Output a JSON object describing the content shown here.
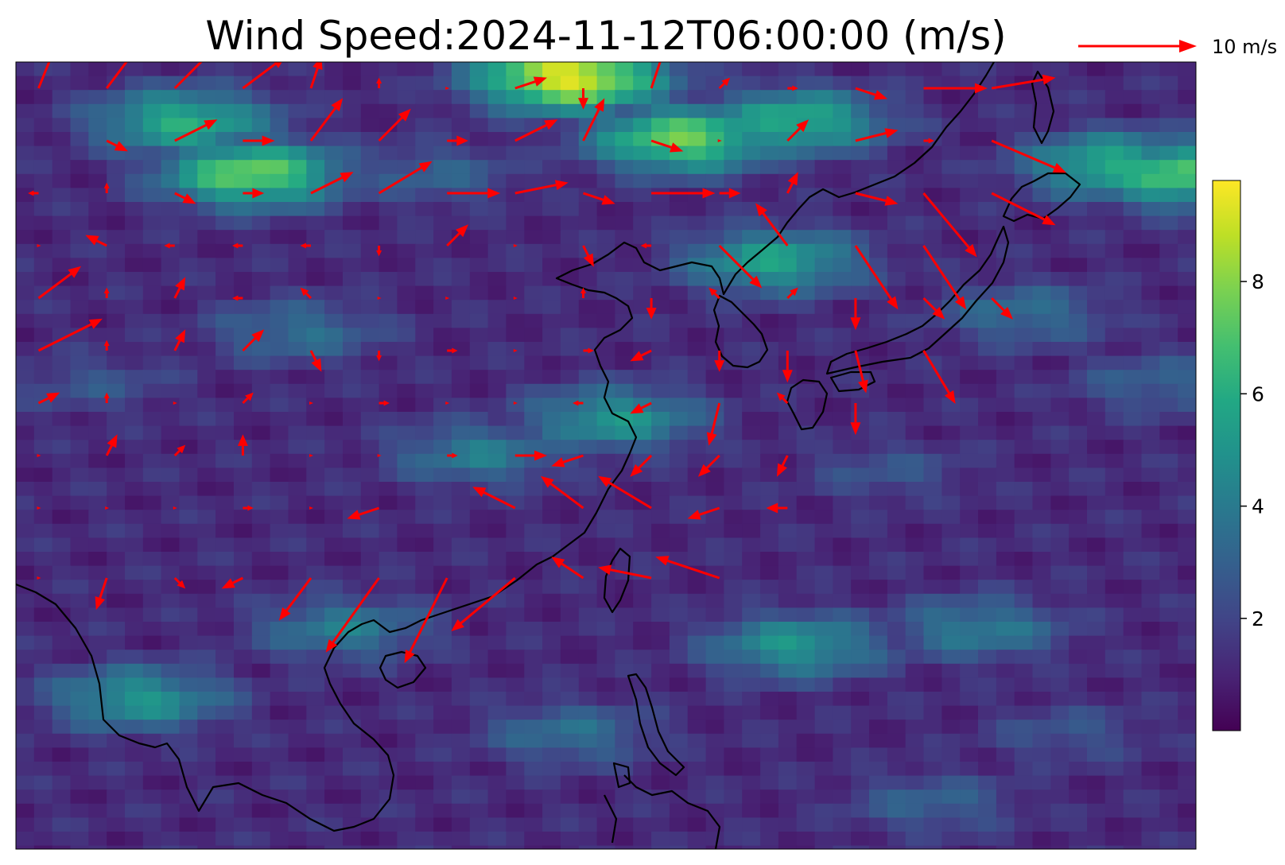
{
  "title": "Wind Speed:2024-11-12T06:00:00 (m/s)",
  "quiver_key": {
    "label": "10 m/s",
    "value": 10
  },
  "colorbar": {
    "colormap": "viridis",
    "range": [
      0,
      9.8
    ],
    "ticks": [
      {
        "value": 2,
        "label": "2"
      },
      {
        "value": 4,
        "label": "4"
      },
      {
        "value": 6,
        "label": "6"
      },
      {
        "value": 8,
        "label": "8"
      }
    ]
  },
  "colors": {
    "arrow": "#ff0000",
    "coastline": "#000000"
  },
  "chart_data": {
    "type": "heatmap",
    "overlay": "quiver",
    "variable": "wind speed",
    "units": "m/s",
    "extent": {
      "lon": [
        100,
        152
      ],
      "lat": [
        3,
        48
      ]
    },
    "speed_hotspots": [
      {
        "lon": 124,
        "lat": 47.5,
        "speed": 9.5
      },
      {
        "lon": 129,
        "lat": 44,
        "speed": 7.5
      },
      {
        "lon": 110,
        "lat": 42,
        "speed": 7.5
      },
      {
        "lon": 107,
        "lat": 45,
        "speed": 6
      },
      {
        "lon": 151,
        "lat": 42,
        "speed": 7
      },
      {
        "lon": 134,
        "lat": 45,
        "speed": 6
      },
      {
        "lon": 148,
        "lat": 42.5,
        "speed": 6
      },
      {
        "lon": 133,
        "lat": 37,
        "speed": 5.5
      },
      {
        "lon": 126,
        "lat": 28,
        "speed": 5
      },
      {
        "lon": 134,
        "lat": 15,
        "speed": 5
      },
      {
        "lon": 142,
        "lat": 16,
        "speed": 4
      },
      {
        "lon": 105,
        "lat": 12,
        "speed": 5
      },
      {
        "lon": 114,
        "lat": 16,
        "speed": 4
      },
      {
        "lon": 120,
        "lat": 26,
        "speed": 4
      },
      {
        "lon": 112,
        "lat": 33,
        "speed": 3.5
      },
      {
        "lon": 144,
        "lat": 34,
        "speed": 3.5
      },
      {
        "lon": 138,
        "lat": 25,
        "speed": 2.5
      },
      {
        "lon": 146,
        "lat": 10,
        "speed": 2.5
      },
      {
        "lon": 140,
        "lat": 6,
        "speed": 3
      },
      {
        "lon": 103,
        "lat": 30,
        "speed": 2.5
      },
      {
        "lon": 118,
        "lat": 42,
        "speed": 3
      },
      {
        "lon": 124,
        "lat": 10,
        "speed": 3.5
      },
      {
        "lon": 150,
        "lat": 30,
        "speed": 3
      }
    ],
    "vectors": [
      {
        "lon": 101,
        "lat": 46.5,
        "u": 2,
        "v": 5
      },
      {
        "lon": 104,
        "lat": 46.5,
        "u": 3,
        "v": 4
      },
      {
        "lon": 107,
        "lat": 46.5,
        "u": 4,
        "v": 4
      },
      {
        "lon": 110,
        "lat": 46.5,
        "u": 4,
        "v": 3
      },
      {
        "lon": 113,
        "lat": 46.5,
        "u": 1,
        "v": 3
      },
      {
        "lon": 116,
        "lat": 46.5,
        "u": 0,
        "v": 1
      },
      {
        "lon": 119,
        "lat": 46.5,
        "u": 0,
        "v": 0
      },
      {
        "lon": 122,
        "lat": 46.5,
        "u": 3,
        "v": 1
      },
      {
        "lon": 125,
        "lat": 46.5,
        "u": 0,
        "v": -2
      },
      {
        "lon": 128,
        "lat": 46.5,
        "u": 2,
        "v": 6
      },
      {
        "lon": 131,
        "lat": 46.5,
        "u": 1,
        "v": 1
      },
      {
        "lon": 134,
        "lat": 46.5,
        "u": 1,
        "v": 0
      },
      {
        "lon": 137,
        "lat": 46.5,
        "u": 3,
        "v": -1
      },
      {
        "lon": 140,
        "lat": 46.5,
        "u": 6,
        "v": 0
      },
      {
        "lon": 143,
        "lat": 46.5,
        "u": 6,
        "v": 1
      },
      {
        "lon": 104,
        "lat": 43.5,
        "u": 2,
        "v": -1
      },
      {
        "lon": 107,
        "lat": 43.5,
        "u": 4,
        "v": 2
      },
      {
        "lon": 110,
        "lat": 43.5,
        "u": 3,
        "v": 0
      },
      {
        "lon": 113,
        "lat": 43.5,
        "u": 3,
        "v": 4
      },
      {
        "lon": 116,
        "lat": 43.5,
        "u": 3,
        "v": 3
      },
      {
        "lon": 119,
        "lat": 43.5,
        "u": 2,
        "v": 0
      },
      {
        "lon": 122,
        "lat": 43.5,
        "u": 4,
        "v": 2
      },
      {
        "lon": 125,
        "lat": 43.5,
        "u": 2,
        "v": 4
      },
      {
        "lon": 128,
        "lat": 43.5,
        "u": 3,
        "v": -1
      },
      {
        "lon": 131,
        "lat": 43.5,
        "u": 0,
        "v": 0
      },
      {
        "lon": 134,
        "lat": 43.5,
        "u": 2,
        "v": 2
      },
      {
        "lon": 137,
        "lat": 43.5,
        "u": 4,
        "v": 1
      },
      {
        "lon": 140,
        "lat": 43.5,
        "u": 1,
        "v": 0
      },
      {
        "lon": 143,
        "lat": 43.5,
        "u": 7,
        "v": -3
      },
      {
        "lon": 101,
        "lat": 40.5,
        "u": -1,
        "v": 0
      },
      {
        "lon": 104,
        "lat": 40.5,
        "u": 0,
        "v": 1
      },
      {
        "lon": 107,
        "lat": 40.5,
        "u": 2,
        "v": -1
      },
      {
        "lon": 110,
        "lat": 40.5,
        "u": 2,
        "v": 0
      },
      {
        "lon": 113,
        "lat": 40.5,
        "u": 4,
        "v": 2
      },
      {
        "lon": 116,
        "lat": 40.5,
        "u": 5,
        "v": 3
      },
      {
        "lon": 119,
        "lat": 40.5,
        "u": 5,
        "v": 0
      },
      {
        "lon": 122,
        "lat": 40.5,
        "u": 5,
        "v": 1
      },
      {
        "lon": 125,
        "lat": 40.5,
        "u": 3,
        "v": -1
      },
      {
        "lon": 128,
        "lat": 40.5,
        "u": 6,
        "v": 0
      },
      {
        "lon": 131,
        "lat": 40.5,
        "u": 2,
        "v": 0
      },
      {
        "lon": 134,
        "lat": 40.5,
        "u": 1,
        "v": 2
      },
      {
        "lon": 137,
        "lat": 40.5,
        "u": 4,
        "v": -1
      },
      {
        "lon": 140,
        "lat": 40.5,
        "u": 5,
        "v": -6
      },
      {
        "lon": 143,
        "lat": 40.5,
        "u": 6,
        "v": -3
      },
      {
        "lon": 101,
        "lat": 37.5,
        "u": 0,
        "v": 0
      },
      {
        "lon": 104,
        "lat": 37.5,
        "u": -2,
        "v": 1
      },
      {
        "lon": 107,
        "lat": 37.5,
        "u": -1,
        "v": 0
      },
      {
        "lon": 110,
        "lat": 37.5,
        "u": -1,
        "v": 0
      },
      {
        "lon": 113,
        "lat": 37.5,
        "u": -1,
        "v": 0
      },
      {
        "lon": 116,
        "lat": 37.5,
        "u": 0,
        "v": -1
      },
      {
        "lon": 119,
        "lat": 37.5,
        "u": 2,
        "v": 2
      },
      {
        "lon": 122,
        "lat": 37.5,
        "u": 0,
        "v": 0
      },
      {
        "lon": 125,
        "lat": 37.5,
        "u": 1,
        "v": -2
      },
      {
        "lon": 128,
        "lat": 37.5,
        "u": -1,
        "v": 0
      },
      {
        "lon": 131,
        "lat": 37.5,
        "u": 4,
        "v": -4
      },
      {
        "lon": 134,
        "lat": 37.5,
        "u": -3,
        "v": 4
      },
      {
        "lon": 137,
        "lat": 37.5,
        "u": 4,
        "v": -6
      },
      {
        "lon": 140,
        "lat": 37.5,
        "u": 4,
        "v": -6
      },
      {
        "lon": 101,
        "lat": 34.5,
        "u": 4,
        "v": 3
      },
      {
        "lon": 104,
        "lat": 34.5,
        "u": 0,
        "v": 1
      },
      {
        "lon": 107,
        "lat": 34.5,
        "u": 1,
        "v": 2
      },
      {
        "lon": 110,
        "lat": 34.5,
        "u": -1,
        "v": 0
      },
      {
        "lon": 113,
        "lat": 34.5,
        "u": -1,
        "v": 1
      },
      {
        "lon": 116,
        "lat": 34.5,
        "u": 0,
        "v": 0
      },
      {
        "lon": 119,
        "lat": 34.5,
        "u": 0,
        "v": 0
      },
      {
        "lon": 122,
        "lat": 34.5,
        "u": 0,
        "v": 0
      },
      {
        "lon": 125,
        "lat": 34.5,
        "u": 0,
        "v": 1
      },
      {
        "lon": 128,
        "lat": 34.5,
        "u": 0,
        "v": -2
      },
      {
        "lon": 131,
        "lat": 34.5,
        "u": -1,
        "v": 1
      },
      {
        "lon": 134,
        "lat": 34.5,
        "u": 1,
        "v": 1
      },
      {
        "lon": 137,
        "lat": 34.5,
        "u": 0,
        "v": -3
      },
      {
        "lon": 140,
        "lat": 34.5,
        "u": 2,
        "v": -2
      },
      {
        "lon": 143,
        "lat": 34.5,
        "u": 2,
        "v": -2
      },
      {
        "lon": 101,
        "lat": 31.5,
        "u": 6,
        "v": 3
      },
      {
        "lon": 104,
        "lat": 31.5,
        "u": 0,
        "v": 1
      },
      {
        "lon": 107,
        "lat": 31.5,
        "u": 1,
        "v": 2
      },
      {
        "lon": 110,
        "lat": 31.5,
        "u": 2,
        "v": 2
      },
      {
        "lon": 113,
        "lat": 31.5,
        "u": 1,
        "v": -2
      },
      {
        "lon": 116,
        "lat": 31.5,
        "u": 0,
        "v": -1
      },
      {
        "lon": 119,
        "lat": 31.5,
        "u": 1,
        "v": 0
      },
      {
        "lon": 122,
        "lat": 31.5,
        "u": 0,
        "v": 0
      },
      {
        "lon": 125,
        "lat": 31.5,
        "u": 1,
        "v": 0
      },
      {
        "lon": 128,
        "lat": 31.5,
        "u": -2,
        "v": -1
      },
      {
        "lon": 131,
        "lat": 31.5,
        "u": 0,
        "v": -2
      },
      {
        "lon": 134,
        "lat": 31.5,
        "u": 0,
        "v": -3
      },
      {
        "lon": 137,
        "lat": 31.5,
        "u": 1,
        "v": -4
      },
      {
        "lon": 140,
        "lat": 31.5,
        "u": 3,
        "v": -5
      },
      {
        "lon": 101,
        "lat": 28.5,
        "u": 2,
        "v": 1
      },
      {
        "lon": 104,
        "lat": 28.5,
        "u": 0,
        "v": 1
      },
      {
        "lon": 107,
        "lat": 28.5,
        "u": 0,
        "v": 0
      },
      {
        "lon": 110,
        "lat": 28.5,
        "u": 1,
        "v": 1
      },
      {
        "lon": 113,
        "lat": 28.5,
        "u": 0,
        "v": 0
      },
      {
        "lon": 116,
        "lat": 28.5,
        "u": 1,
        "v": 0
      },
      {
        "lon": 119,
        "lat": 28.5,
        "u": 0,
        "v": 0
      },
      {
        "lon": 122,
        "lat": 28.5,
        "u": 0,
        "v": 0
      },
      {
        "lon": 125,
        "lat": 28.5,
        "u": -1,
        "v": 0
      },
      {
        "lon": 128,
        "lat": 28.5,
        "u": -2,
        "v": -1
      },
      {
        "lon": 131,
        "lat": 28.5,
        "u": -1,
        "v": -4
      },
      {
        "lon": 134,
        "lat": 28.5,
        "u": -1,
        "v": 1
      },
      {
        "lon": 137,
        "lat": 28.5,
        "u": 0,
        "v": -3
      },
      {
        "lon": 101,
        "lat": 25.5,
        "u": 0,
        "v": 0
      },
      {
        "lon": 104,
        "lat": 25.5,
        "u": 1,
        "v": 2
      },
      {
        "lon": 107,
        "lat": 25.5,
        "u": 1,
        "v": 1
      },
      {
        "lon": 110,
        "lat": 25.5,
        "u": 0,
        "v": 2
      },
      {
        "lon": 113,
        "lat": 25.5,
        "u": 0,
        "v": 0
      },
      {
        "lon": 116,
        "lat": 25.5,
        "u": 0,
        "v": 0
      },
      {
        "lon": 119,
        "lat": 25.5,
        "u": 1,
        "v": 0
      },
      {
        "lon": 122,
        "lat": 25.5,
        "u": 3,
        "v": 0
      },
      {
        "lon": 125,
        "lat": 25.5,
        "u": -3,
        "v": -1
      },
      {
        "lon": 128,
        "lat": 25.5,
        "u": -2,
        "v": -2
      },
      {
        "lon": 131,
        "lat": 25.5,
        "u": -2,
        "v": -2
      },
      {
        "lon": 134,
        "lat": 25.5,
        "u": -1,
        "v": -2
      },
      {
        "lon": 101,
        "lat": 22.5,
        "u": 0,
        "v": 0
      },
      {
        "lon": 104,
        "lat": 22.5,
        "u": 0,
        "v": 0
      },
      {
        "lon": 107,
        "lat": 22.5,
        "u": 0,
        "v": 0
      },
      {
        "lon": 110,
        "lat": 22.5,
        "u": 1,
        "v": 0
      },
      {
        "lon": 113,
        "lat": 22.5,
        "u": 0,
        "v": 0
      },
      {
        "lon": 116,
        "lat": 22.5,
        "u": -3,
        "v": -1
      },
      {
        "lon": 122,
        "lat": 22.5,
        "u": -4,
        "v": 2
      },
      {
        "lon": 125,
        "lat": 22.5,
        "u": -4,
        "v": 3
      },
      {
        "lon": 128,
        "lat": 22.5,
        "u": -5,
        "v": 3
      },
      {
        "lon": 131,
        "lat": 22.5,
        "u": -3,
        "v": -1
      },
      {
        "lon": 134,
        "lat": 22.5,
        "u": -2,
        "v": 0
      },
      {
        "lon": 101,
        "lat": 18.5,
        "u": 0,
        "v": 0
      },
      {
        "lon": 104,
        "lat": 18.5,
        "u": -1,
        "v": -3
      },
      {
        "lon": 107,
        "lat": 18.5,
        "u": 1,
        "v": -1
      },
      {
        "lon": 110,
        "lat": 18.5,
        "u": -2,
        "v": -1
      },
      {
        "lon": 113,
        "lat": 18.5,
        "u": -3,
        "v": -4
      },
      {
        "lon": 116,
        "lat": 18.5,
        "u": -5,
        "v": -7
      },
      {
        "lon": 119,
        "lat": 18.5,
        "u": -4,
        "v": -8
      },
      {
        "lon": 122,
        "lat": 18.5,
        "u": -6,
        "v": -5
      },
      {
        "lon": 125,
        "lat": 18.5,
        "u": -3,
        "v": 2
      },
      {
        "lon": 128,
        "lat": 18.5,
        "u": -5,
        "v": 1
      },
      {
        "lon": 131,
        "lat": 18.5,
        "u": -6,
        "v": 2
      }
    ]
  }
}
